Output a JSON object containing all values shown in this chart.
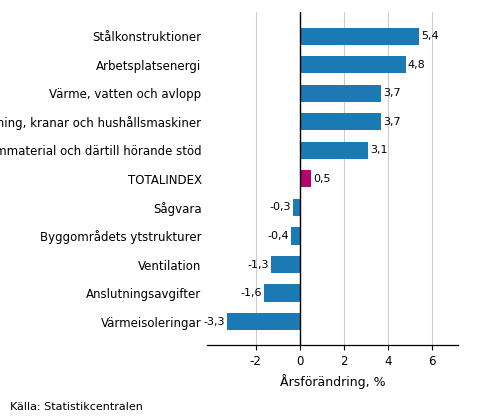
{
  "categories": [
    "Värmeisoleringar",
    "Anslutningsavgifter",
    "Ventilation",
    "Byggområdets ytstrukturer",
    "Sågvara",
    "TOTALINDEX",
    "Formmaterial och därtill hörande stöd",
    "Fast inredning, kranar och hushållsmaskiner",
    "Värme, vatten och avlopp",
    "Arbetsplatsenergi",
    "Stålkonstruktioner"
  ],
  "values": [
    -3.3,
    -1.6,
    -1.3,
    -0.4,
    -0.3,
    0.5,
    3.1,
    3.7,
    3.7,
    4.8,
    5.4
  ],
  "bar_colors": [
    "#1b7ab3",
    "#1b7ab3",
    "#1b7ab3",
    "#1b7ab3",
    "#1b7ab3",
    "#b5006e",
    "#1b7ab3",
    "#1b7ab3",
    "#1b7ab3",
    "#1b7ab3",
    "#1b7ab3"
  ],
  "xlabel": "Årsförändring, %",
  "xlim": [
    -4.2,
    7.2
  ],
  "xticks": [
    -2,
    0,
    2,
    4,
    6
  ],
  "source": "Källa: Statistikcentralen",
  "background_color": "#ffffff",
  "grid_color": "#cccccc",
  "label_fontsize": 8.0,
  "tick_fontsize": 8.5,
  "xlabel_fontsize": 9.0,
  "source_fontsize": 8.0
}
